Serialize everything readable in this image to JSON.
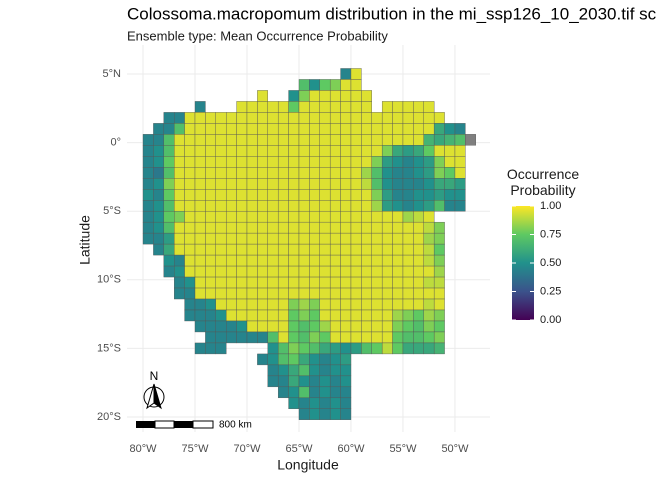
{
  "chart_data": {
    "type": "raster-map",
    "title": "Colossoma.macropomum distribution in the mi_ssp126_10_2030.tif sc",
    "subtitle": "Ensemble type: Mean Occurrence Probability",
    "x_label": "Longitude",
    "y_label": "Latitude",
    "legend_title": "Occurrence Probability",
    "scale_label": "800 km",
    "north_label": "N",
    "xlim": [
      -81.54,
      -46.63
    ],
    "ylim": [
      7.11,
      -21.09
    ],
    "xticks": [
      {
        "value": -80,
        "label": "80°W"
      },
      {
        "value": -75,
        "label": "75°W"
      },
      {
        "value": -70,
        "label": "70°W"
      },
      {
        "value": -65,
        "label": "65°W"
      },
      {
        "value": -60,
        "label": "60°W"
      },
      {
        "value": -55,
        "label": "55°W"
      },
      {
        "value": -50,
        "label": "50°W"
      }
    ],
    "yticks": [
      {
        "value": 5,
        "label": "5°N"
      },
      {
        "value": 0,
        "label": "0°"
      },
      {
        "value": -5,
        "label": "5°S"
      },
      {
        "value": -10,
        "label": "10°S"
      },
      {
        "value": -15,
        "label": "15°S"
      },
      {
        "value": -20,
        "label": "20°S"
      }
    ],
    "grid": true,
    "clim": [
      0,
      1
    ],
    "cticks": [
      {
        "value": 1,
        "label": "1.00"
      },
      {
        "value": 0.75,
        "label": "0.75"
      },
      {
        "value": 0.5,
        "label": "0.50"
      },
      {
        "value": 0.25,
        "label": "0.25"
      },
      {
        "value": 0,
        "label": "0.00"
      }
    ],
    "colorscale": [
      "#440154",
      "#3b528b",
      "#21918c",
      "#5ec962",
      "#fde725"
    ],
    "na_color": "#7f7f7f",
    "cells": [
      {
        "lat": 5.0,
        "lon": -60.5,
        "values": [
          0.45,
          0.95
        ]
      },
      {
        "lat": 4.2,
        "lon": -64.5,
        "values": [
          0.7,
          0.5,
          0.75,
          0.8,
          0.95,
          0.95
        ]
      },
      {
        "lat": 3.4,
        "lon": -68.5,
        "values": [
          0.95
        ]
      },
      {
        "lat": 3.4,
        "lon": -65.5,
        "values": [
          0.5,
          0.8,
          0.95,
          0.95,
          0.95,
          0.95,
          0.95,
          0.95
        ]
      },
      {
        "lat": 2.6,
        "lon": -74.5,
        "values": [
          0.45
        ]
      },
      {
        "lat": 2.6,
        "lon": -70.5,
        "values": [
          0.95,
          0.95,
          0.95,
          0.95,
          0.95,
          0.75,
          0.95,
          0.95,
          0.95,
          0.95,
          0.95,
          0.95,
          0.95
        ]
      },
      {
        "lat": 2.6,
        "lon": -56.5,
        "values": [
          0.95,
          0.95,
          0.95,
          0.95,
          0.95
        ]
      },
      {
        "lat": 1.8,
        "lon": -77.5,
        "values": [
          0.45,
          0.45,
          0.95,
          0.95,
          0.95,
          0.95,
          0.95,
          0.95,
          0.95,
          0.95,
          0.95,
          0.95,
          0.95,
          0.95,
          0.95,
          0.95,
          0.95,
          0.95,
          0.95,
          0.95,
          0.95,
          0.95,
          0.95,
          0.95,
          0.95,
          0.95,
          0.95
        ]
      },
      {
        "lat": 1.0,
        "lon": -78.5,
        "values": [
          0.45,
          0.45,
          0.7,
          0.95,
          0.95,
          0.95,
          0.95,
          0.95,
          0.95,
          0.95,
          0.95,
          0.95,
          0.95,
          0.95,
          0.95,
          0.95,
          0.95,
          0.95,
          0.95,
          0.95,
          0.95,
          0.95,
          0.95,
          0.95,
          0.95,
          0.95,
          0.95,
          0.6,
          0.5,
          0.45
        ]
      },
      {
        "lat": 0.2,
        "lon": -79.5,
        "values": [
          0.45,
          0.45,
          0.7,
          0.95,
          0.95,
          0.95,
          0.95,
          0.95,
          0.95,
          0.95,
          0.95,
          0.95,
          0.95,
          0.95,
          0.95,
          0.95,
          0.95,
          0.95,
          0.95,
          0.95,
          0.95,
          0.95,
          0.95,
          0.95,
          0.95,
          0.95,
          0.95,
          0.65,
          0.6,
          0.65,
          0.7,
          null
        ]
      },
      {
        "lat": -0.6,
        "lon": -79.5,
        "values": [
          0.45,
          0.5,
          0.7,
          0.95,
          0.95,
          0.95,
          0.95,
          0.95,
          0.95,
          0.95,
          0.95,
          0.95,
          0.95,
          0.95,
          0.95,
          0.95,
          0.95,
          0.95,
          0.95,
          0.95,
          0.95,
          0.95,
          0.95,
          0.8,
          0.6,
          0.55,
          0.6,
          0.75,
          0.95,
          0.95,
          0.95
        ]
      },
      {
        "lat": -1.4,
        "lon": -79.5,
        "values": [
          0.45,
          0.5,
          0.75,
          0.95,
          0.95,
          0.95,
          0.95,
          0.95,
          0.95,
          0.95,
          0.95,
          0.95,
          0.95,
          0.95,
          0.95,
          0.95,
          0.95,
          0.95,
          0.95,
          0.95,
          0.95,
          0.95,
          0.8,
          0.55,
          0.5,
          0.45,
          0.5,
          0.55,
          0.8,
          0.95,
          0.95
        ]
      },
      {
        "lat": -2.2,
        "lon": -79.5,
        "values": [
          0.45,
          0.4,
          0.7,
          0.95,
          0.95,
          0.95,
          0.95,
          0.95,
          0.95,
          0.95,
          0.95,
          0.95,
          0.95,
          0.95,
          0.95,
          0.95,
          0.95,
          0.95,
          0.95,
          0.95,
          0.95,
          0.85,
          0.7,
          0.5,
          0.45,
          0.45,
          0.5,
          0.55,
          0.8,
          0.75,
          0.95
        ]
      },
      {
        "lat": -3.0,
        "lon": -79.5,
        "values": [
          0.45,
          0.5,
          0.8,
          0.95,
          0.95,
          0.95,
          0.95,
          0.95,
          0.95,
          0.95,
          0.95,
          0.95,
          0.95,
          0.95,
          0.95,
          0.95,
          0.95,
          0.95,
          0.95,
          0.95,
          0.95,
          0.9,
          0.7,
          0.5,
          0.45,
          0.45,
          0.45,
          0.5,
          0.6,
          0.6,
          0.55
        ]
      },
      {
        "lat": -3.8,
        "lon": -79.5,
        "values": [
          0.5,
          0.45,
          0.75,
          0.95,
          0.95,
          0.95,
          0.95,
          0.95,
          0.95,
          0.95,
          0.95,
          0.95,
          0.95,
          0.95,
          0.95,
          0.95,
          0.95,
          0.95,
          0.95,
          0.95,
          0.95,
          0.95,
          0.8,
          0.55,
          0.45,
          0.45,
          0.5,
          0.5,
          0.55,
          0.5,
          0.5
        ]
      },
      {
        "lat": -4.6,
        "lon": -79.5,
        "values": [
          0.45,
          0.5,
          0.7,
          0.95,
          0.95,
          0.95,
          0.95,
          0.95,
          0.95,
          0.95,
          0.95,
          0.95,
          0.95,
          0.95,
          0.95,
          0.95,
          0.95,
          0.95,
          0.95,
          0.95,
          0.95,
          0.95,
          0.85,
          0.55,
          0.5,
          0.45,
          0.5,
          0.55,
          0.7,
          0.45,
          0.45
        ]
      },
      {
        "lat": -5.4,
        "lon": -79.5,
        "values": [
          0.45,
          0.5,
          0.75,
          0.8,
          0.95,
          0.95,
          0.95,
          0.95,
          0.95,
          0.95,
          0.95,
          0.95,
          0.95,
          0.95,
          0.95,
          0.95,
          0.95,
          0.95,
          0.95,
          0.95,
          0.95,
          0.95,
          0.95,
          0.95,
          0.95,
          0.85,
          0.9,
          0.95
        ]
      },
      {
        "lat": -6.2,
        "lon": -79.5,
        "values": [
          0.45,
          0.5,
          0.7,
          0.95,
          0.95,
          0.95,
          0.95,
          0.95,
          0.95,
          0.95,
          0.95,
          0.95,
          0.95,
          0.95,
          0.95,
          0.95,
          0.95,
          0.95,
          0.95,
          0.95,
          0.95,
          0.95,
          0.95,
          0.95,
          0.95,
          0.95,
          0.95,
          0.9,
          0.8
        ]
      },
      {
        "lat": -7.0,
        "lon": -79.5,
        "values": [
          0.45,
          0.45,
          0.55,
          0.95,
          0.95,
          0.95,
          0.95,
          0.95,
          0.95,
          0.95,
          0.95,
          0.95,
          0.95,
          0.95,
          0.95,
          0.95,
          0.95,
          0.95,
          0.95,
          0.95,
          0.95,
          0.95,
          0.95,
          0.95,
          0.95,
          0.95,
          0.95,
          0.85,
          0.8
        ]
      },
      {
        "lat": -7.8,
        "lon": -78.5,
        "values": [
          0.45,
          0.6,
          0.95,
          0.95,
          0.95,
          0.95,
          0.95,
          0.95,
          0.95,
          0.95,
          0.95,
          0.95,
          0.95,
          0.95,
          0.95,
          0.95,
          0.95,
          0.95,
          0.95,
          0.95,
          0.95,
          0.95,
          0.95,
          0.95,
          0.95,
          0.95,
          0.9,
          0.75
        ]
      },
      {
        "lat": -8.6,
        "lon": -77.5,
        "values": [
          0.5,
          0.45,
          0.95,
          0.95,
          0.95,
          0.95,
          0.95,
          0.95,
          0.95,
          0.95,
          0.95,
          0.95,
          0.95,
          0.95,
          0.95,
          0.95,
          0.95,
          0.95,
          0.95,
          0.95,
          0.95,
          0.95,
          0.95,
          0.95,
          0.95,
          0.9,
          0.8
        ]
      },
      {
        "lat": -9.4,
        "lon": -77.5,
        "values": [
          0.45,
          0.5,
          0.95,
          0.95,
          0.95,
          0.95,
          0.95,
          0.95,
          0.95,
          0.95,
          0.95,
          0.95,
          0.95,
          0.95,
          0.95,
          0.95,
          0.95,
          0.95,
          0.95,
          0.95,
          0.95,
          0.95,
          0.95,
          0.95,
          0.95,
          0.95,
          0.85
        ]
      },
      {
        "lat": -10.2,
        "lon": -76.5,
        "values": [
          0.45,
          0.5,
          0.95,
          0.95,
          0.95,
          0.95,
          0.95,
          0.95,
          0.95,
          0.95,
          0.95,
          0.95,
          0.95,
          0.95,
          0.95,
          0.95,
          0.95,
          0.95,
          0.95,
          0.95,
          0.95,
          0.95,
          0.95,
          0.95,
          0.9,
          0.9
        ]
      },
      {
        "lat": -11.0,
        "lon": -76.5,
        "values": [
          0.45,
          0.45,
          0.95,
          0.95,
          0.95,
          0.95,
          0.95,
          0.95,
          0.95,
          0.95,
          0.95,
          0.95,
          0.95,
          0.95,
          0.95,
          0.95,
          0.95,
          0.95,
          0.95,
          0.95,
          0.95,
          0.95,
          0.95,
          0.95,
          0.95,
          0.95
        ]
      },
      {
        "lat": -11.8,
        "lon": -75.5,
        "values": [
          0.45,
          0.45,
          0.5,
          0.95,
          0.95,
          0.95,
          0.95,
          0.95,
          0.95,
          0.95,
          0.8,
          0.85,
          0.8,
          0.95,
          0.95,
          0.95,
          0.95,
          0.95,
          0.95,
          0.95,
          0.95,
          0.95,
          0.95,
          0.9,
          0.95
        ]
      },
      {
        "lat": -12.6,
        "lon": -75.5,
        "values": [
          0.45,
          0.45,
          0.45,
          0.5,
          0.95,
          0.95,
          0.95,
          0.95,
          0.95,
          0.95,
          0.75,
          0.8,
          0.75,
          0.95,
          0.95,
          0.95,
          0.95,
          0.95,
          0.95,
          0.95,
          0.85,
          0.8,
          0.75,
          0.85,
          0.8
        ]
      },
      {
        "lat": -13.4,
        "lon": -74.5,
        "values": [
          0.45,
          0.45,
          0.45,
          0.45,
          0.5,
          0.95,
          0.95,
          0.95,
          0.95,
          0.75,
          0.7,
          0.75,
          0.85,
          0.95,
          0.95,
          0.95,
          0.95,
          0.95,
          0.95,
          0.8,
          0.75,
          0.7,
          0.8,
          0.75
        ]
      },
      {
        "lat": -14.2,
        "lon": -73.5,
        "values": [
          0.45,
          0.45,
          0.45,
          0.45,
          0.45,
          0.45,
          0.7,
          0.95,
          0.75,
          0.7,
          0.8,
          0.75,
          0.95,
          0.95,
          0.95,
          0.95,
          0.95,
          0.95,
          0.75,
          0.7,
          0.7,
          0.75,
          0.8
        ]
      },
      {
        "lat": -15.0,
        "lon": -74.5,
        "values": [
          0.45,
          0.45,
          0.45
        ]
      },
      {
        "lat": -15.0,
        "lon": -67.5,
        "values": [
          0.5,
          0.7,
          0.8,
          0.75,
          0.7,
          0.6,
          0.55,
          0.5,
          0.55,
          0.7,
          0.75,
          0.9,
          0.75,
          0.6,
          0.6,
          0.6,
          0.65
        ]
      },
      {
        "lat": -15.8,
        "lon": -68.5,
        "values": [
          0.45,
          0.5,
          0.7,
          0.75,
          0.6,
          0.5,
          0.45,
          0.5,
          0.55
        ]
      },
      {
        "lat": -16.6,
        "lon": -67.5,
        "values": [
          0.45,
          0.5,
          0.6,
          0.7,
          0.5,
          0.45,
          0.5,
          0.5
        ]
      },
      {
        "lat": -17.4,
        "lon": -67.5,
        "values": [
          0.45,
          0.45,
          0.6,
          0.5,
          0.45,
          0.5,
          0.45,
          0.5
        ]
      },
      {
        "lat": -18.2,
        "lon": -66.5,
        "values": [
          0.45,
          0.5,
          0.7,
          0.45,
          0.5,
          0.45,
          0.45
        ]
      },
      {
        "lat": -19.0,
        "lon": -65.5,
        "values": [
          0.5,
          0.45,
          0.5,
          0.45,
          0.5,
          0.45
        ]
      },
      {
        "lat": -19.8,
        "lon": -64.5,
        "values": [
          0.45,
          0.5,
          0.45,
          0.5,
          0.45
        ]
      }
    ]
  }
}
